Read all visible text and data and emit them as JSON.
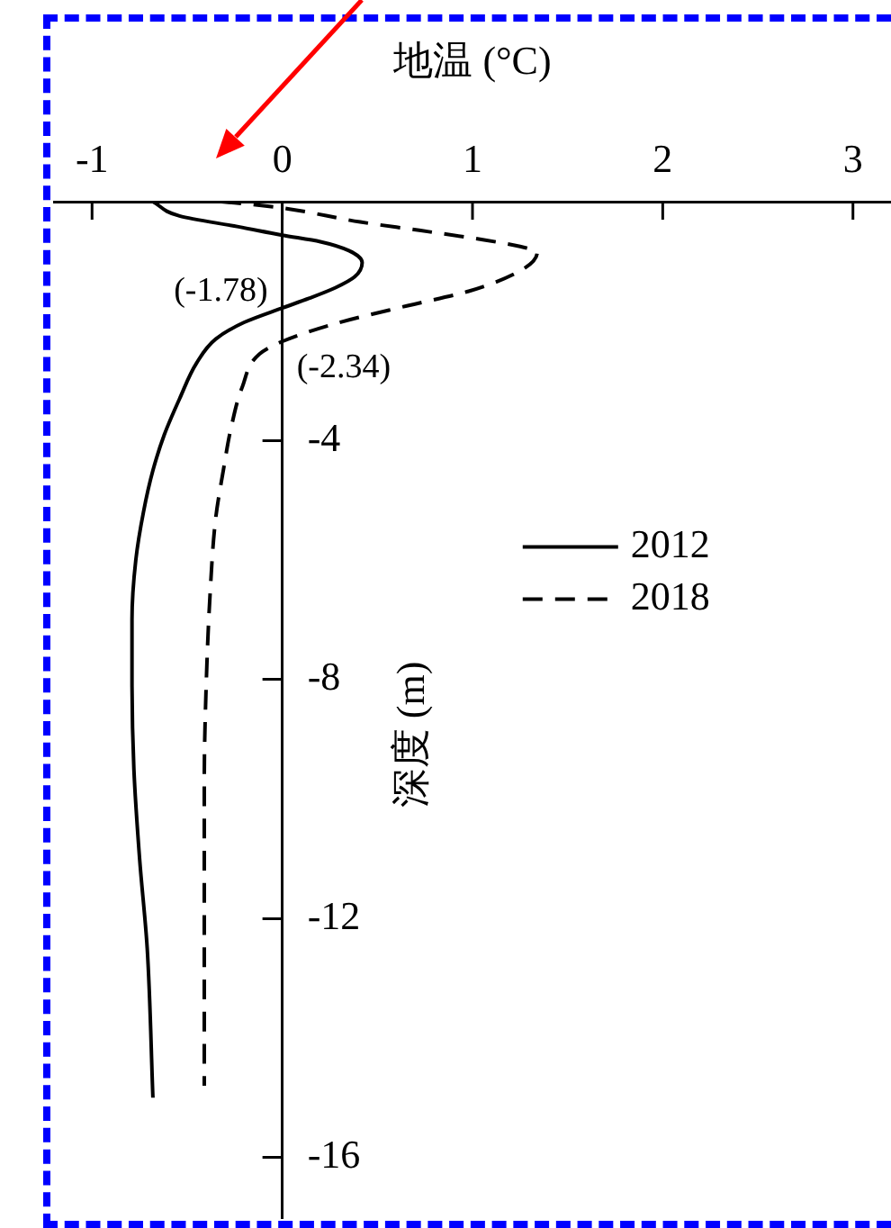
{
  "chart_data": {
    "type": "line",
    "xlabel": "地温 (°C)",
    "ylabel": "深度 (m)",
    "series": [
      {
        "name": "2012",
        "color": "#000000",
        "line_style": "solid",
        "x": [
          -0.68,
          -0.54,
          -0.23,
          0,
          0.2,
          0.35,
          0.42,
          0.38,
          0.28,
          0.14,
          0,
          -0.2,
          -0.35,
          -0.45,
          -0.54,
          -0.62,
          -0.68,
          -0.73,
          -0.77,
          -0.79,
          -0.79,
          -0.78,
          -0.75,
          -0.71,
          -0.68
        ],
        "values": [
          0,
          -0.24,
          -0.42,
          -0.56,
          -0.67,
          -0.82,
          -1.02,
          -1.26,
          -1.44,
          -1.62,
          -1.78,
          -2.02,
          -2.3,
          -2.7,
          -3.3,
          -3.9,
          -4.5,
          -5.2,
          -6,
          -7,
          -8,
          -9.5,
          -11,
          -12.5,
          -15
        ]
      },
      {
        "name": "2018",
        "color": "#000000",
        "line_style": "dashed",
        "x": [
          -0.32,
          -0.12,
          0.03,
          0.41,
          0.72,
          1.04,
          1.25,
          1.34,
          1.26,
          0.98,
          0.66,
          0.28,
          0,
          -0.12,
          -0.21,
          -0.27,
          -0.31,
          -0.35,
          -0.38,
          -0.4,
          -0.41,
          -0.41
        ],
        "values": [
          0,
          -0.06,
          -0.12,
          -0.34,
          -0.48,
          -0.63,
          -0.75,
          -0.85,
          -1.14,
          -1.5,
          -1.74,
          -2.04,
          -2.34,
          -2.55,
          -3.1,
          -3.8,
          -4.5,
          -5.3,
          -6.6,
          -8.1,
          -9.7,
          -14.8
        ]
      }
    ],
    "xlim": [
      -1.2,
      3.2
    ],
    "xticks": [
      -1,
      0,
      1,
      2,
      3
    ],
    "ylim": [
      -17,
      0
    ],
    "yticks": [
      -16,
      -12,
      -8,
      -4
    ],
    "legend": "top right",
    "marker": "none",
    "annotations": [
      {
        "text": "(-1.78)",
        "x": 0,
        "y": -1.78
      },
      {
        "text": "(-2.34)",
        "x": 0,
        "y": -2.34
      }
    ]
  }
}
